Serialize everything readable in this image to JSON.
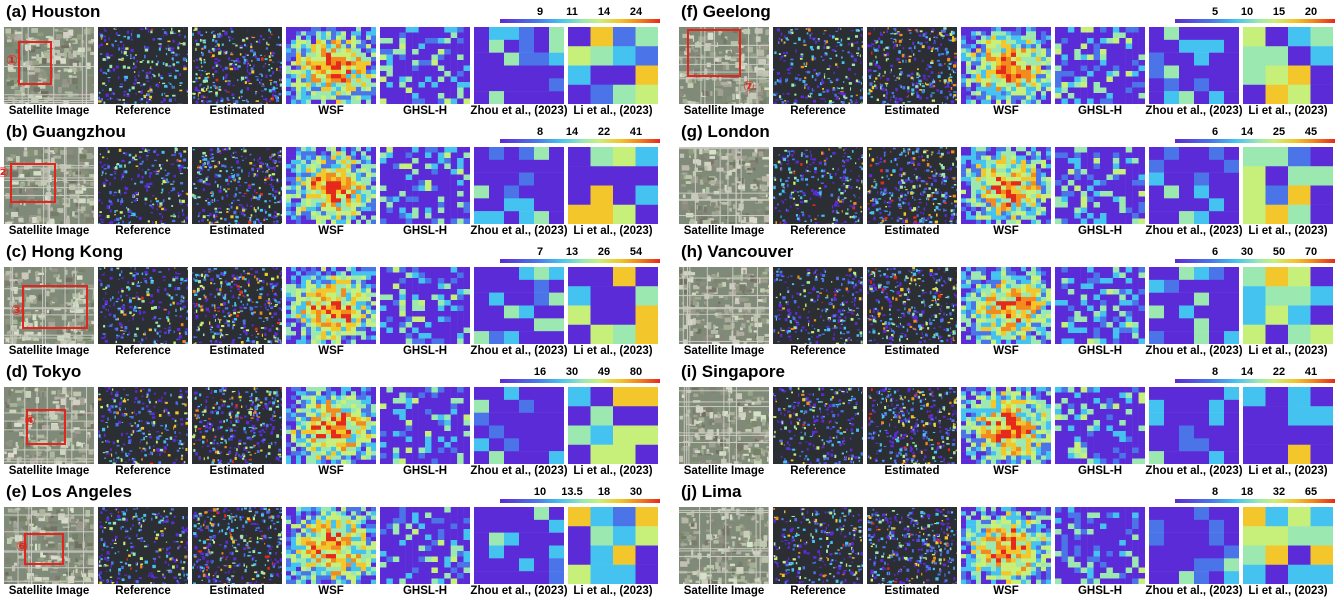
{
  "column_labels": [
    "Satellite Image",
    "Reference",
    "Estimated",
    "WSF",
    "GHSL-H",
    "Zhou et al., (2023)",
    "Li et al., (2023)"
  ],
  "panels": [
    {
      "title": "(a) Houston",
      "ticks": [
        "9",
        "11",
        "14",
        "24"
      ],
      "marker": "①"
    },
    {
      "title": "(b) Guangzhou",
      "ticks": [
        "8",
        "14",
        "22",
        "41"
      ],
      "marker": "②"
    },
    {
      "title": "(c) Hong Kong",
      "ticks": [
        "7",
        "13",
        "26",
        "54"
      ],
      "marker": "③"
    },
    {
      "title": "(d) Tokyo",
      "ticks": [
        "16",
        "30",
        "49",
        "80"
      ],
      "marker": "④"
    },
    {
      "title": "(e) Los Angeles",
      "ticks": [
        "10",
        "13.5",
        "18",
        "30"
      ],
      "marker": "⑥"
    },
    {
      "title": "(f) Geelong",
      "ticks": [
        "5",
        "10",
        "15",
        "20"
      ],
      "marker": "⑦"
    },
    {
      "title": "(g) London",
      "ticks": [
        "6",
        "14",
        "25",
        "45"
      ],
      "marker": ""
    },
    {
      "title": "(h) Vancouver",
      "ticks": [
        "6",
        "30",
        "50",
        "70"
      ],
      "marker": ""
    },
    {
      "title": "(i) Singapore",
      "ticks": [
        "8",
        "14",
        "22",
        "41"
      ],
      "marker": ""
    },
    {
      "title": "(j) Lima",
      "ticks": [
        "8",
        "18",
        "32",
        "65"
      ],
      "marker": ""
    }
  ],
  "colors": {
    "low": "#5a2bd6",
    "mid_low": "#45c3f0",
    "mid": "#9be8b0",
    "mid_high": "#f3c62b",
    "high": "#e52a1c",
    "marker": "#e3261d"
  }
}
